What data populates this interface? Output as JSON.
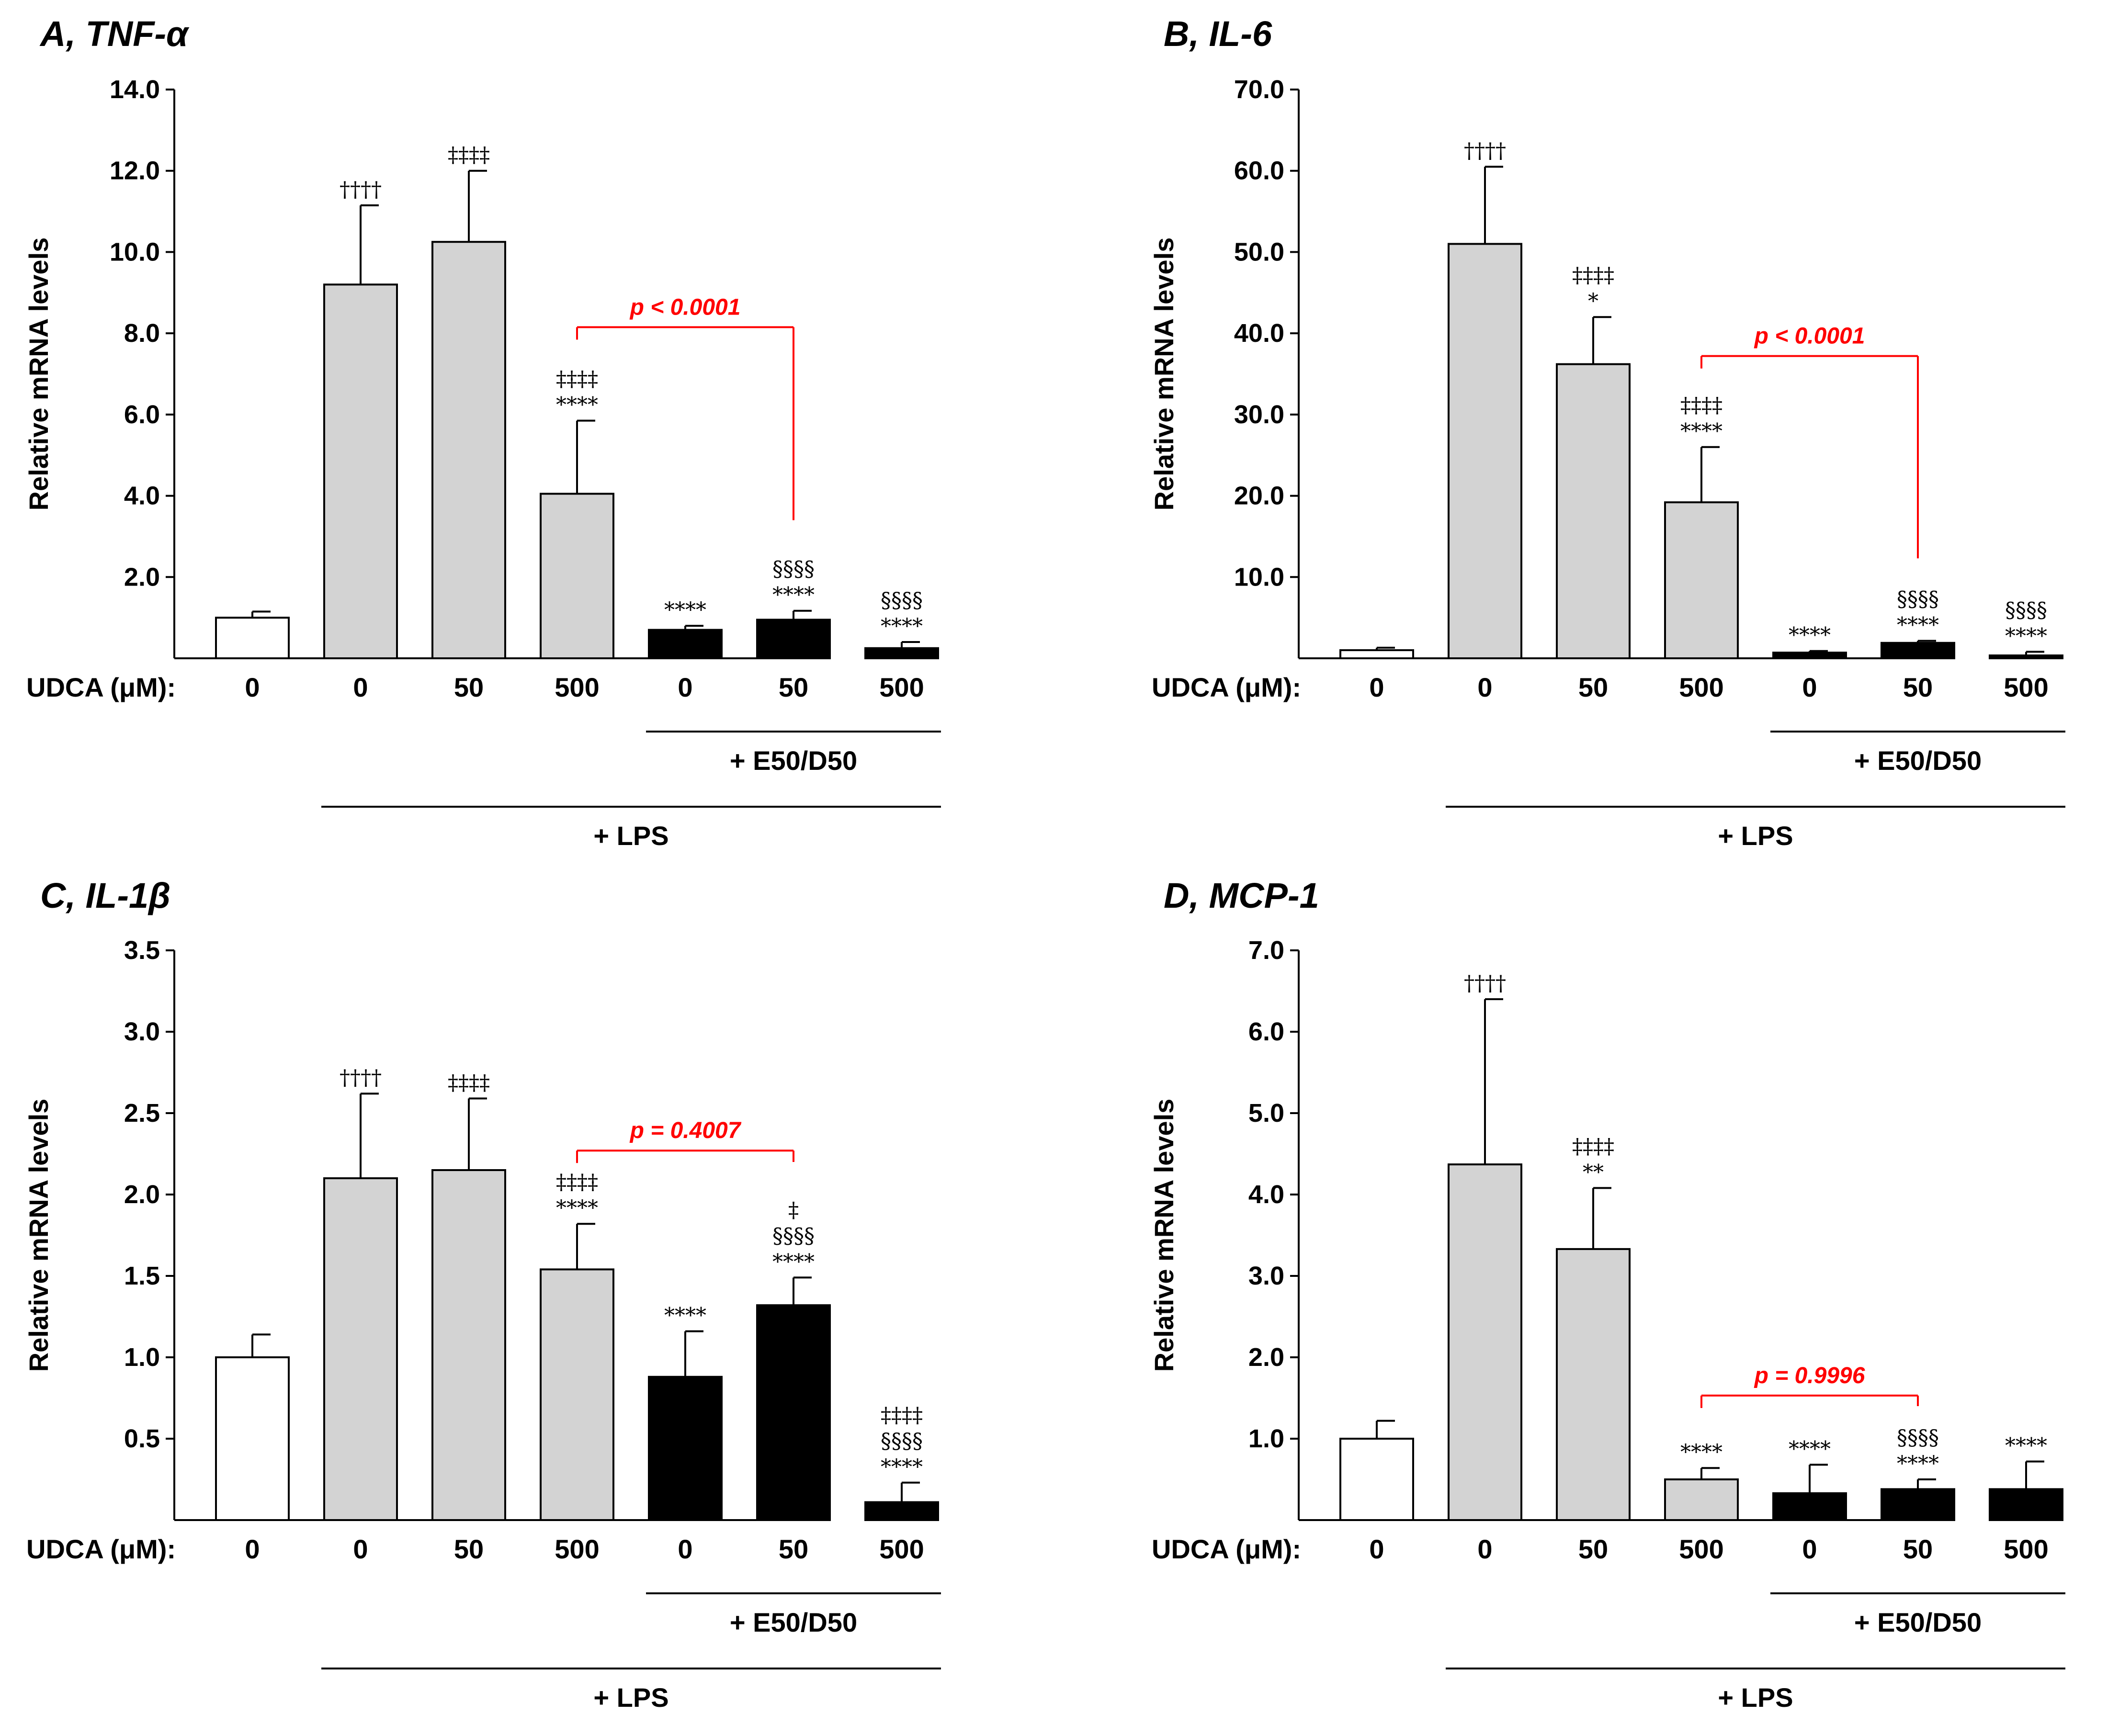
{
  "x_prefix": "UDCA (μM):",
  "colors": {
    "control": "#ffffff",
    "lps": "#d3d3d3",
    "combo": "#000000",
    "bracket": "#ff0000",
    "axis": "#000000"
  },
  "chart_data": [
    {
      "type": "bar",
      "panel": "A",
      "title": "A, TNF-α",
      "ylabel": "Relative mRNA levels",
      "ylim": [
        0,
        14
      ],
      "yticks": [
        "2.0",
        "4.0",
        "6.0",
        "8.0",
        "10.0",
        "12.0",
        "14.0"
      ],
      "categories": [
        "0",
        "0",
        "50",
        "500",
        "0",
        "50",
        "500"
      ],
      "groups": [
        "control",
        "lps",
        "lps",
        "lps",
        "combo",
        "combo",
        "combo"
      ],
      "values": [
        1.0,
        9.2,
        10.25,
        4.05,
        0.7,
        0.95,
        0.25
      ],
      "errors": [
        0.15,
        1.95,
        1.75,
        1.8,
        0.1,
        0.22,
        0.15
      ],
      "annotations": [
        [],
        [
          "††††"
        ],
        [
          "‡‡‡‡"
        ],
        [
          "‡‡‡‡",
          "****"
        ],
        [
          "****"
        ],
        [
          "§§§§",
          "****"
        ],
        [
          "§§§§",
          "****"
        ]
      ],
      "comparison": {
        "from": 3,
        "to": 5,
        "label": "p < 0.0001",
        "y": 8.15,
        "right_drop_to": 3.4
      },
      "group_labels": [
        "+ E50/D50",
        "+ LPS"
      ]
    },
    {
      "type": "bar",
      "panel": "B",
      "title": "B, IL-6",
      "ylabel": "Relative mRNA levels",
      "ylim": [
        0,
        70
      ],
      "yticks": [
        "10.0",
        "20.0",
        "30.0",
        "40.0",
        "50.0",
        "60.0",
        "70.0"
      ],
      "categories": [
        "0",
        "0",
        "50",
        "500",
        "0",
        "50",
        "500"
      ],
      "groups": [
        "control",
        "lps",
        "lps",
        "lps",
        "combo",
        "combo",
        "combo"
      ],
      "values": [
        1.0,
        51.0,
        36.2,
        19.2,
        0.7,
        1.9,
        0.3
      ],
      "errors": [
        0.3,
        9.5,
        5.8,
        6.8,
        0.2,
        0.25,
        0.5
      ],
      "annotations": [
        [],
        [
          "††††"
        ],
        [
          "‡‡‡‡",
          "*"
        ],
        [
          "‡‡‡‡",
          "****"
        ],
        [
          "****"
        ],
        [
          "§§§§",
          "****"
        ],
        [
          "§§§§",
          "****"
        ]
      ],
      "comparison": {
        "from": 3,
        "to": 5,
        "label": "p < 0.0001",
        "y": 37.2,
        "right_drop_to": 12.3
      },
      "group_labels": [
        "+ E50/D50",
        "+ LPS"
      ]
    },
    {
      "type": "bar",
      "panel": "C",
      "title": "C, IL-1β",
      "ylabel": "Relative mRNA levels",
      "ylim": [
        0,
        3.5
      ],
      "yticks": [
        "0.5",
        "1.0",
        "1.5",
        "2.0",
        "2.5",
        "3.0",
        "3.5"
      ],
      "categories": [
        "0",
        "0",
        "50",
        "500",
        "0",
        "50",
        "500"
      ],
      "groups": [
        "control",
        "lps",
        "lps",
        "lps",
        "combo",
        "combo",
        "combo"
      ],
      "values": [
        1.0,
        2.1,
        2.15,
        1.54,
        0.88,
        1.32,
        0.11
      ],
      "errors": [
        0.14,
        0.52,
        0.44,
        0.28,
        0.28,
        0.17,
        0.12
      ],
      "annotations": [
        [],
        [
          "††††"
        ],
        [
          "‡‡‡‡"
        ],
        [
          "‡‡‡‡",
          "****"
        ],
        [
          "****"
        ],
        [
          "‡",
          "§§§§",
          "****"
        ],
        [
          "‡‡‡‡",
          "§§§§",
          "****"
        ]
      ],
      "comparison": {
        "from": 3,
        "to": 5,
        "label": "p = 0.4007",
        "y": 2.27,
        "right_drop_to": 2.2
      },
      "group_labels": [
        "+ E50/D50",
        "+ LPS"
      ]
    },
    {
      "type": "bar",
      "panel": "D",
      "title": "D, MCP-1",
      "ylabel": "Relative mRNA levels",
      "ylim": [
        0,
        7
      ],
      "yticks": [
        "1.0",
        "2.0",
        "3.0",
        "4.0",
        "5.0",
        "6.0",
        "7.0"
      ],
      "categories": [
        "0",
        "0",
        "50",
        "500",
        "0",
        "50",
        "500"
      ],
      "groups": [
        "control",
        "lps",
        "lps",
        "lps",
        "combo",
        "combo",
        "combo"
      ],
      "values": [
        1.0,
        4.37,
        3.33,
        0.5,
        0.33,
        0.38,
        0.38
      ],
      "errors": [
        0.22,
        2.03,
        0.75,
        0.14,
        0.35,
        0.12,
        0.34
      ],
      "annotations": [
        [],
        [
          "††††"
        ],
        [
          "‡‡‡‡",
          "**"
        ],
        [
          "****"
        ],
        [
          "****"
        ],
        [
          "§§§§",
          "****"
        ],
        [
          "****"
        ]
      ],
      "comparison": {
        "from": 3,
        "to": 5,
        "label": "p = 0.9996",
        "y": 1.53,
        "right_drop_to": 1.4
      },
      "group_labels": [
        "+ E50/D50",
        "+ LPS"
      ]
    }
  ]
}
